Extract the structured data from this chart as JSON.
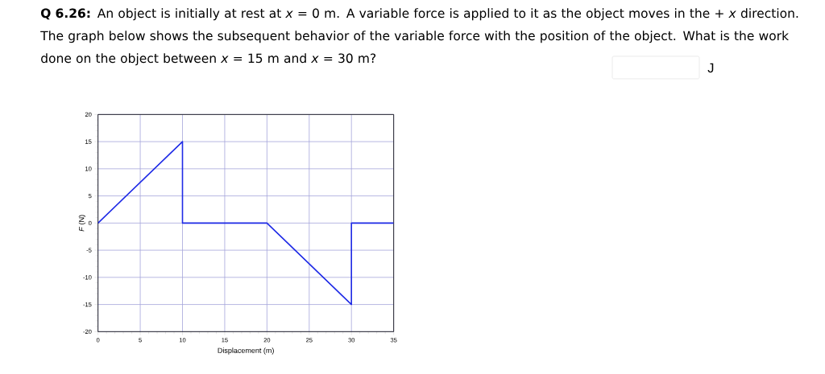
{
  "chart_data": {
    "type": "line",
    "title": "**Q 6.26:** An object is initially at rest at *x* = 0 m.  A variable force is applied to it as the object moves in the + *x* direction.  The graph below shows the subsequent behavior of the variable force with the position of the object.  What is the work done on the object between *x* = 15 m and *x* = 30 m?",
    "annotations": [
      "J"
    ],
    "xlabel": "Displacement (m)",
    "ylabel": "*F*  (N)",
    "x": [
      0,
      10,
      10,
      20,
      30,
      30,
      35
    ],
    "series": [
      {
        "color": "#1f2be6",
        "values": [
          0,
          15,
          0,
          0,
          -15,
          0,
          0
        ]
      }
    ],
    "xlim": [
      0,
      35
    ],
    "ylim": [
      -20,
      20
    ],
    "xticks": [
      0,
      5,
      10,
      15,
      20,
      25,
      30,
      35
    ],
    "yticks": [
      -20,
      -15,
      -10,
      -5,
      0,
      5,
      10,
      15,
      20
    ],
    "grid": true,
    "marker": "none",
    "line_style": "solid"
  }
}
